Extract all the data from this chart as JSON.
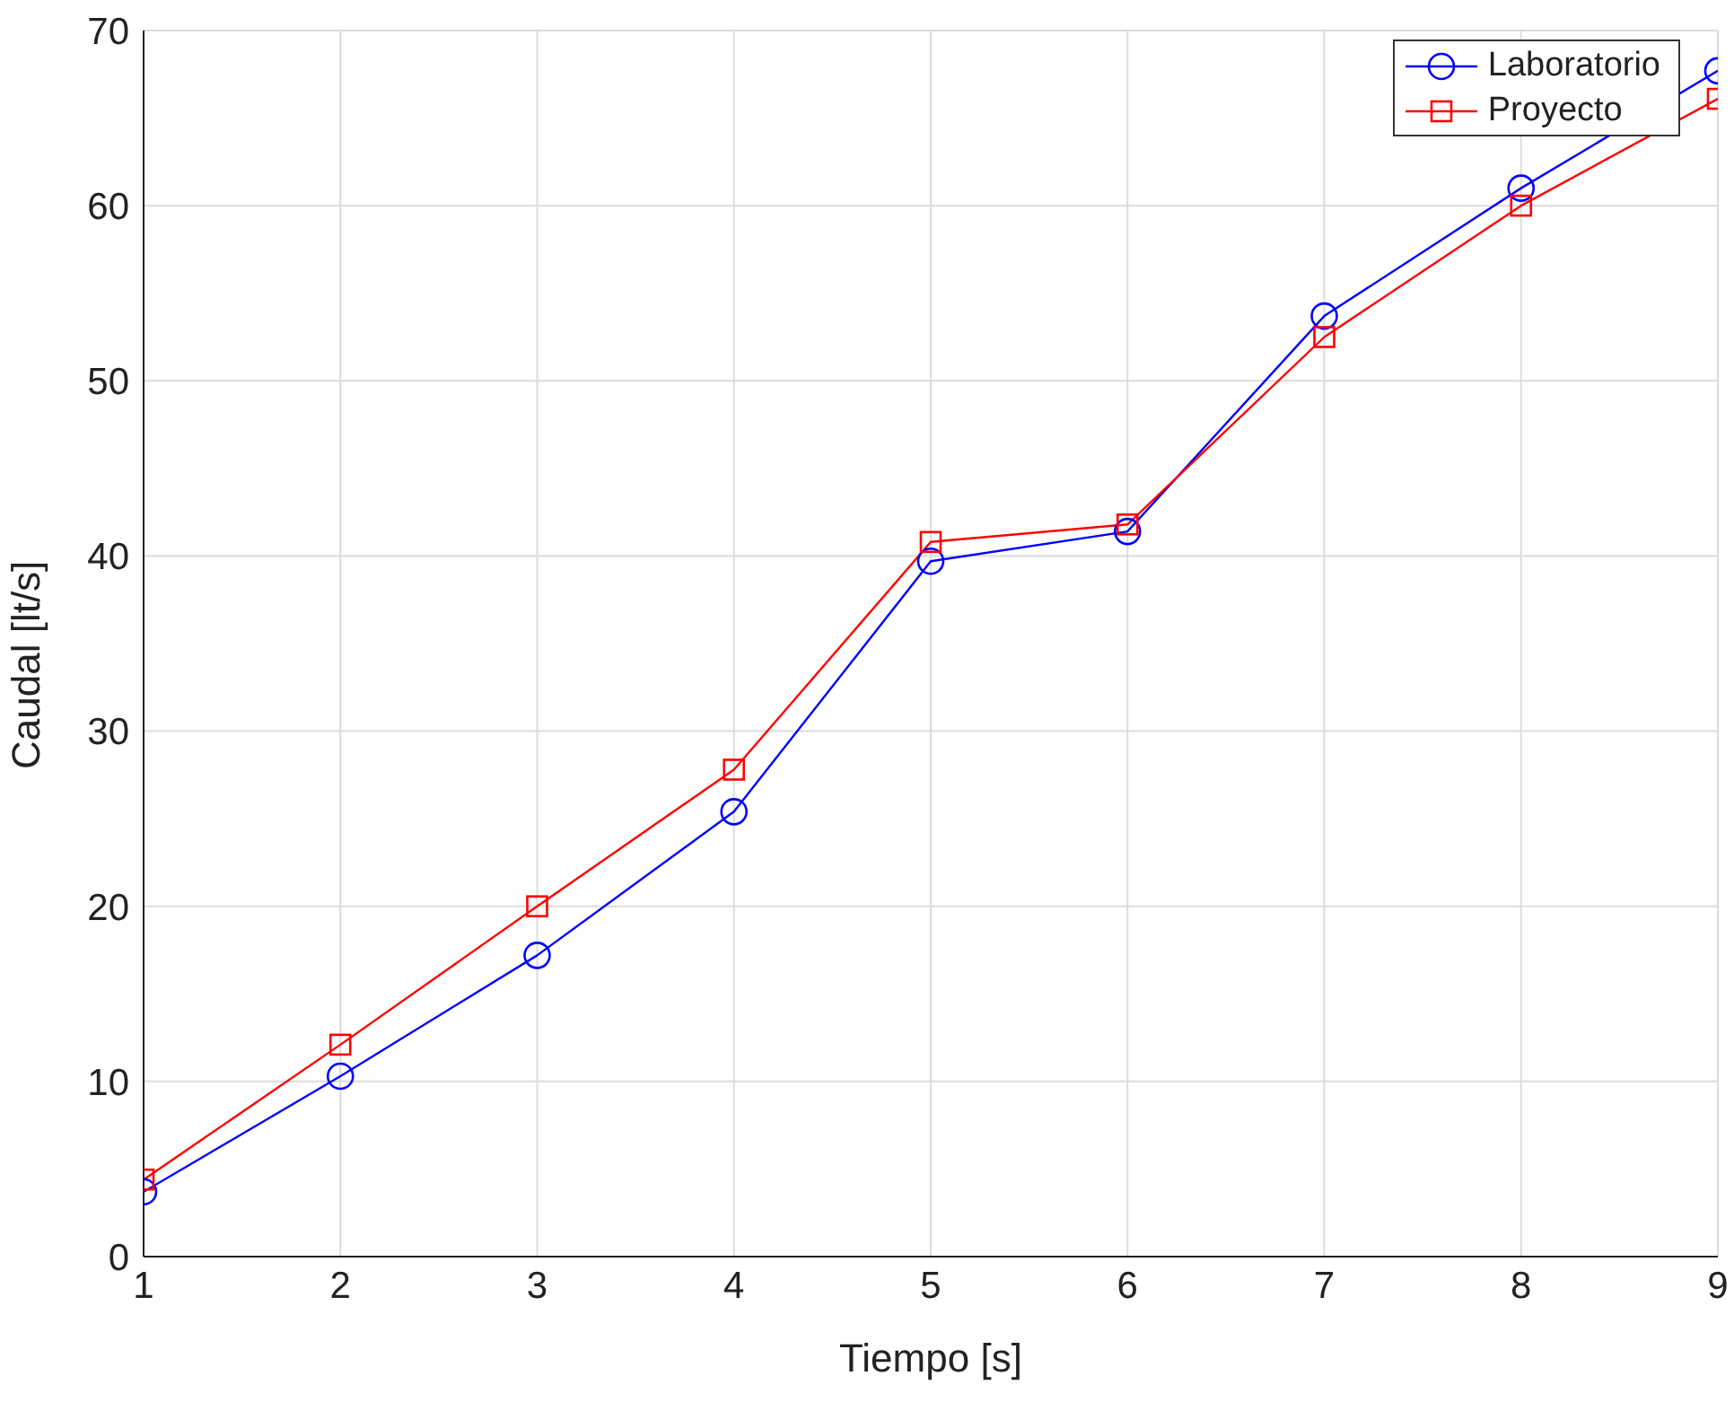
{
  "chart_data": {
    "type": "line",
    "xlabel": "Tiempo [s]",
    "ylabel": "Caudal [lt/s]",
    "x": [
      1,
      2,
      3,
      4,
      5,
      6,
      7,
      8,
      9
    ],
    "series": [
      {
        "name": "Laboratorio",
        "color": "#0000ff",
        "marker": "circle",
        "values": [
          3.7,
          10.3,
          17.2,
          25.4,
          39.7,
          41.4,
          53.7,
          61,
          67.7
        ]
      },
      {
        "name": "Proyecto",
        "color": "#ff0000",
        "marker": "square",
        "values": [
          4.4,
          12.1,
          20.0,
          27.8,
          40.8,
          41.8,
          52.5,
          60.0,
          66.1
        ]
      }
    ],
    "xlim": [
      1,
      9
    ],
    "xticks": [
      1,
      2,
      3,
      4,
      5,
      6,
      7,
      8,
      9
    ],
    "ylim": [
      0,
      70
    ],
    "yticks": [
      0,
      10,
      20,
      30,
      40,
      50,
      60,
      70
    ],
    "grid": true,
    "legend": "top right",
    "line_style": "solid"
  }
}
